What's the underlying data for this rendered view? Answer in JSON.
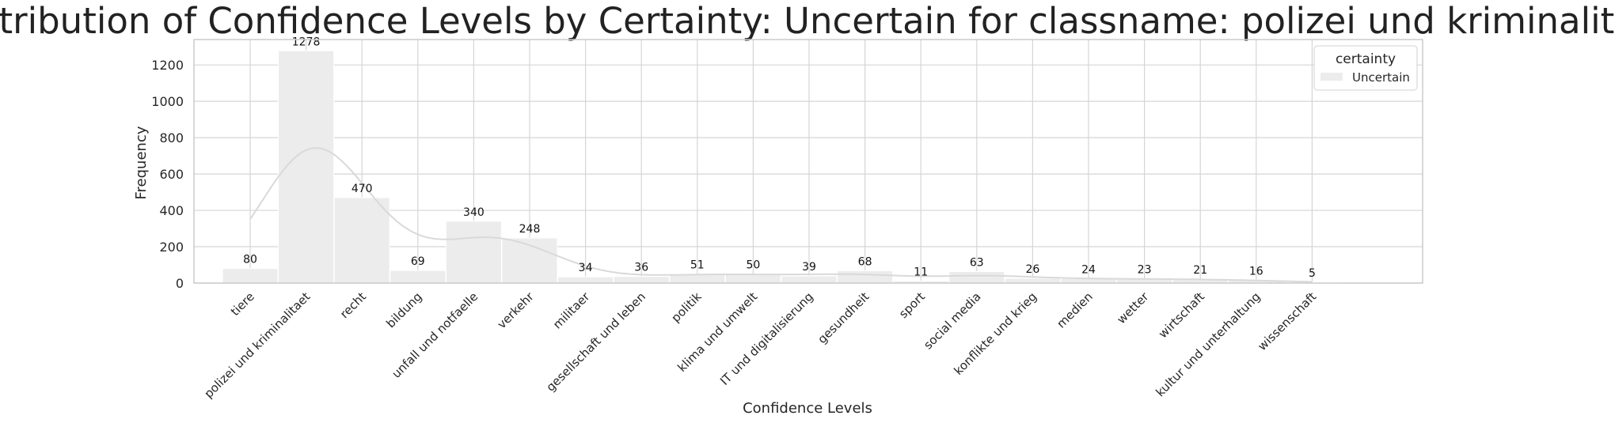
{
  "chart_data": {
    "type": "bar",
    "title": "Distribution of Confidence Levels by Certainty: Uncertain for classname: polizei und kriminalitaet",
    "xlabel": "Confidence Levels",
    "ylabel": "Frequency",
    "categories": [
      "tiere",
      "polizei und kriminalitaet",
      "recht",
      "bildung",
      "unfall und notfaelle",
      "verkehr",
      "militaer",
      "gesellschaft und leben",
      "politik",
      "klima und umwelt",
      "IT und digitalisierung",
      "gesundheit",
      "sport",
      "social media",
      "konflikte und krieg",
      "medien",
      "wetter",
      "wirtschaft",
      "kultur und unterhaltung",
      "wissenschaft"
    ],
    "series": [
      {
        "name": "Uncertain",
        "values": [
          80,
          1278,
          470,
          69,
          340,
          248,
          34,
          36,
          51,
          50,
          39,
          68,
          11,
          63,
          26,
          24,
          23,
          21,
          16,
          5
        ]
      }
    ],
    "ylim": [
      0,
      1340
    ],
    "yticks": [
      0,
      200,
      400,
      600,
      800,
      1000,
      1200
    ],
    "grid": true,
    "kde": true,
    "legend": {
      "title": "certainty",
      "placement": "top-right"
    },
    "colors": {
      "bar": "#ececec",
      "kde": "#d9d9d9",
      "grid": "#d5d5d5",
      "axis": "#cccccc"
    }
  }
}
